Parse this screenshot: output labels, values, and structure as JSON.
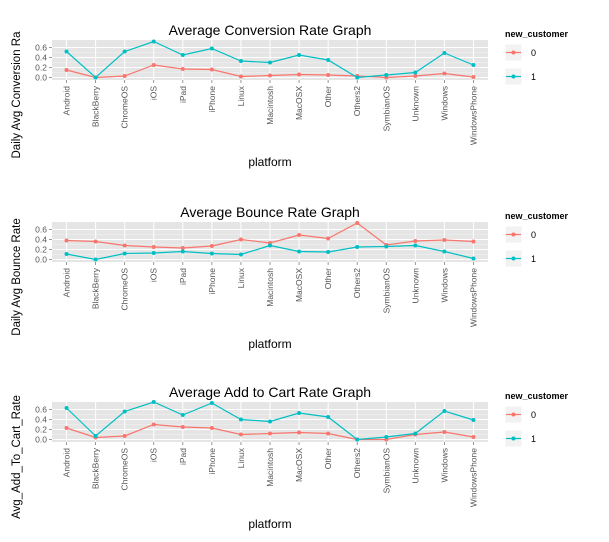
{
  "chart_data": [
    {
      "type": "line",
      "title": "Average Conversion Rate Graph",
      "xlabel": "platform",
      "ylabel": "Daily Avg Conversion Ra",
      "ylim": [
        -0.05,
        0.75
      ],
      "yticks": [
        "0.0",
        "0.2",
        "0.4",
        "0.6"
      ],
      "yticks_values": [
        0,
        0.2,
        0.4,
        0.6
      ],
      "grid": true,
      "legend": {
        "title": "new_customer",
        "position": "right",
        "entries": [
          "0",
          "1"
        ]
      },
      "categories": [
        "Android",
        "BlackBerry",
        "ChromeOS",
        "iOS",
        "iPad",
        "iPhone",
        "Linux",
        "Macintosh",
        "MacOSX",
        "Other",
        "Others2",
        "SymbianOS",
        "Unknown",
        "Windows",
        "WindowsPhone"
      ],
      "series": [
        {
          "name": "0",
          "color": "#F8766D",
          "values": [
            0.15,
            0.0,
            0.03,
            0.25,
            0.17,
            0.16,
            0.02,
            0.04,
            0.06,
            0.05,
            0.03,
            0.0,
            0.03,
            0.08,
            0.01
          ]
        },
        {
          "name": "1",
          "color": "#00BFC4",
          "values": [
            0.52,
            0.0,
            0.52,
            0.72,
            0.45,
            0.58,
            0.33,
            0.3,
            0.45,
            0.35,
            0.0,
            0.05,
            0.1,
            0.49,
            0.25
          ]
        }
      ]
    },
    {
      "type": "line",
      "title": "Average Bounce Rate Graph",
      "xlabel": "platform",
      "ylabel": "Daily Avg Bounce Rate",
      "ylim": [
        -0.05,
        0.75
      ],
      "yticks": [
        "0.0",
        "0.2",
        "0.4",
        "0.6"
      ],
      "yticks_values": [
        0,
        0.2,
        0.4,
        0.6
      ],
      "grid": true,
      "legend": {
        "title": "new_customer",
        "position": "right",
        "entries": [
          "0",
          "1"
        ]
      },
      "categories": [
        "Android",
        "BlackBerry",
        "ChromeOS",
        "iOS",
        "iPad",
        "iPhone",
        "Linux",
        "Macintosh",
        "MacOSX",
        "Other",
        "Others2",
        "SymbianOS",
        "Unknown",
        "Windows",
        "WindowsPhone"
      ],
      "series": [
        {
          "name": "0",
          "color": "#F8766D",
          "values": [
            0.38,
            0.36,
            0.28,
            0.25,
            0.23,
            0.27,
            0.4,
            0.33,
            0.49,
            0.42,
            0.73,
            0.29,
            0.37,
            0.39,
            0.36
          ]
        },
        {
          "name": "1",
          "color": "#00BFC4",
          "values": [
            0.11,
            0.0,
            0.12,
            0.13,
            0.16,
            0.12,
            0.1,
            0.28,
            0.16,
            0.15,
            0.25,
            0.26,
            0.28,
            0.16,
            0.02
          ]
        }
      ]
    },
    {
      "type": "line",
      "title": "Average Add to Cart Rate Graph",
      "xlabel": "platform",
      "ylabel": "Avg_Add_To_Cart_Rate",
      "ylim": [
        -0.05,
        0.75
      ],
      "yticks": [
        "0.0",
        "0.2",
        "0.4",
        "0.6"
      ],
      "yticks_values": [
        0,
        0.2,
        0.4,
        0.6
      ],
      "grid": true,
      "legend": {
        "title": "new_customer",
        "position": "right",
        "entries": [
          "0",
          "1"
        ]
      },
      "categories": [
        "Android",
        "BlackBerry",
        "ChromeOS",
        "iOS",
        "iPad",
        "iPhone",
        "Linux",
        "Macintosh",
        "MacOSX",
        "Other",
        "Others2",
        "SymbianOS",
        "Unknown",
        "Windows",
        "WindowsPhone"
      ],
      "series": [
        {
          "name": "0",
          "color": "#F8766D",
          "values": [
            0.23,
            0.04,
            0.07,
            0.3,
            0.25,
            0.23,
            0.1,
            0.12,
            0.14,
            0.12,
            0.0,
            0.0,
            0.1,
            0.15,
            0.05
          ]
        },
        {
          "name": "1",
          "color": "#00BFC4",
          "values": [
            0.63,
            0.07,
            0.56,
            0.75,
            0.49,
            0.73,
            0.4,
            0.36,
            0.53,
            0.45,
            0.0,
            0.05,
            0.12,
            0.57,
            0.39
          ]
        }
      ]
    }
  ]
}
